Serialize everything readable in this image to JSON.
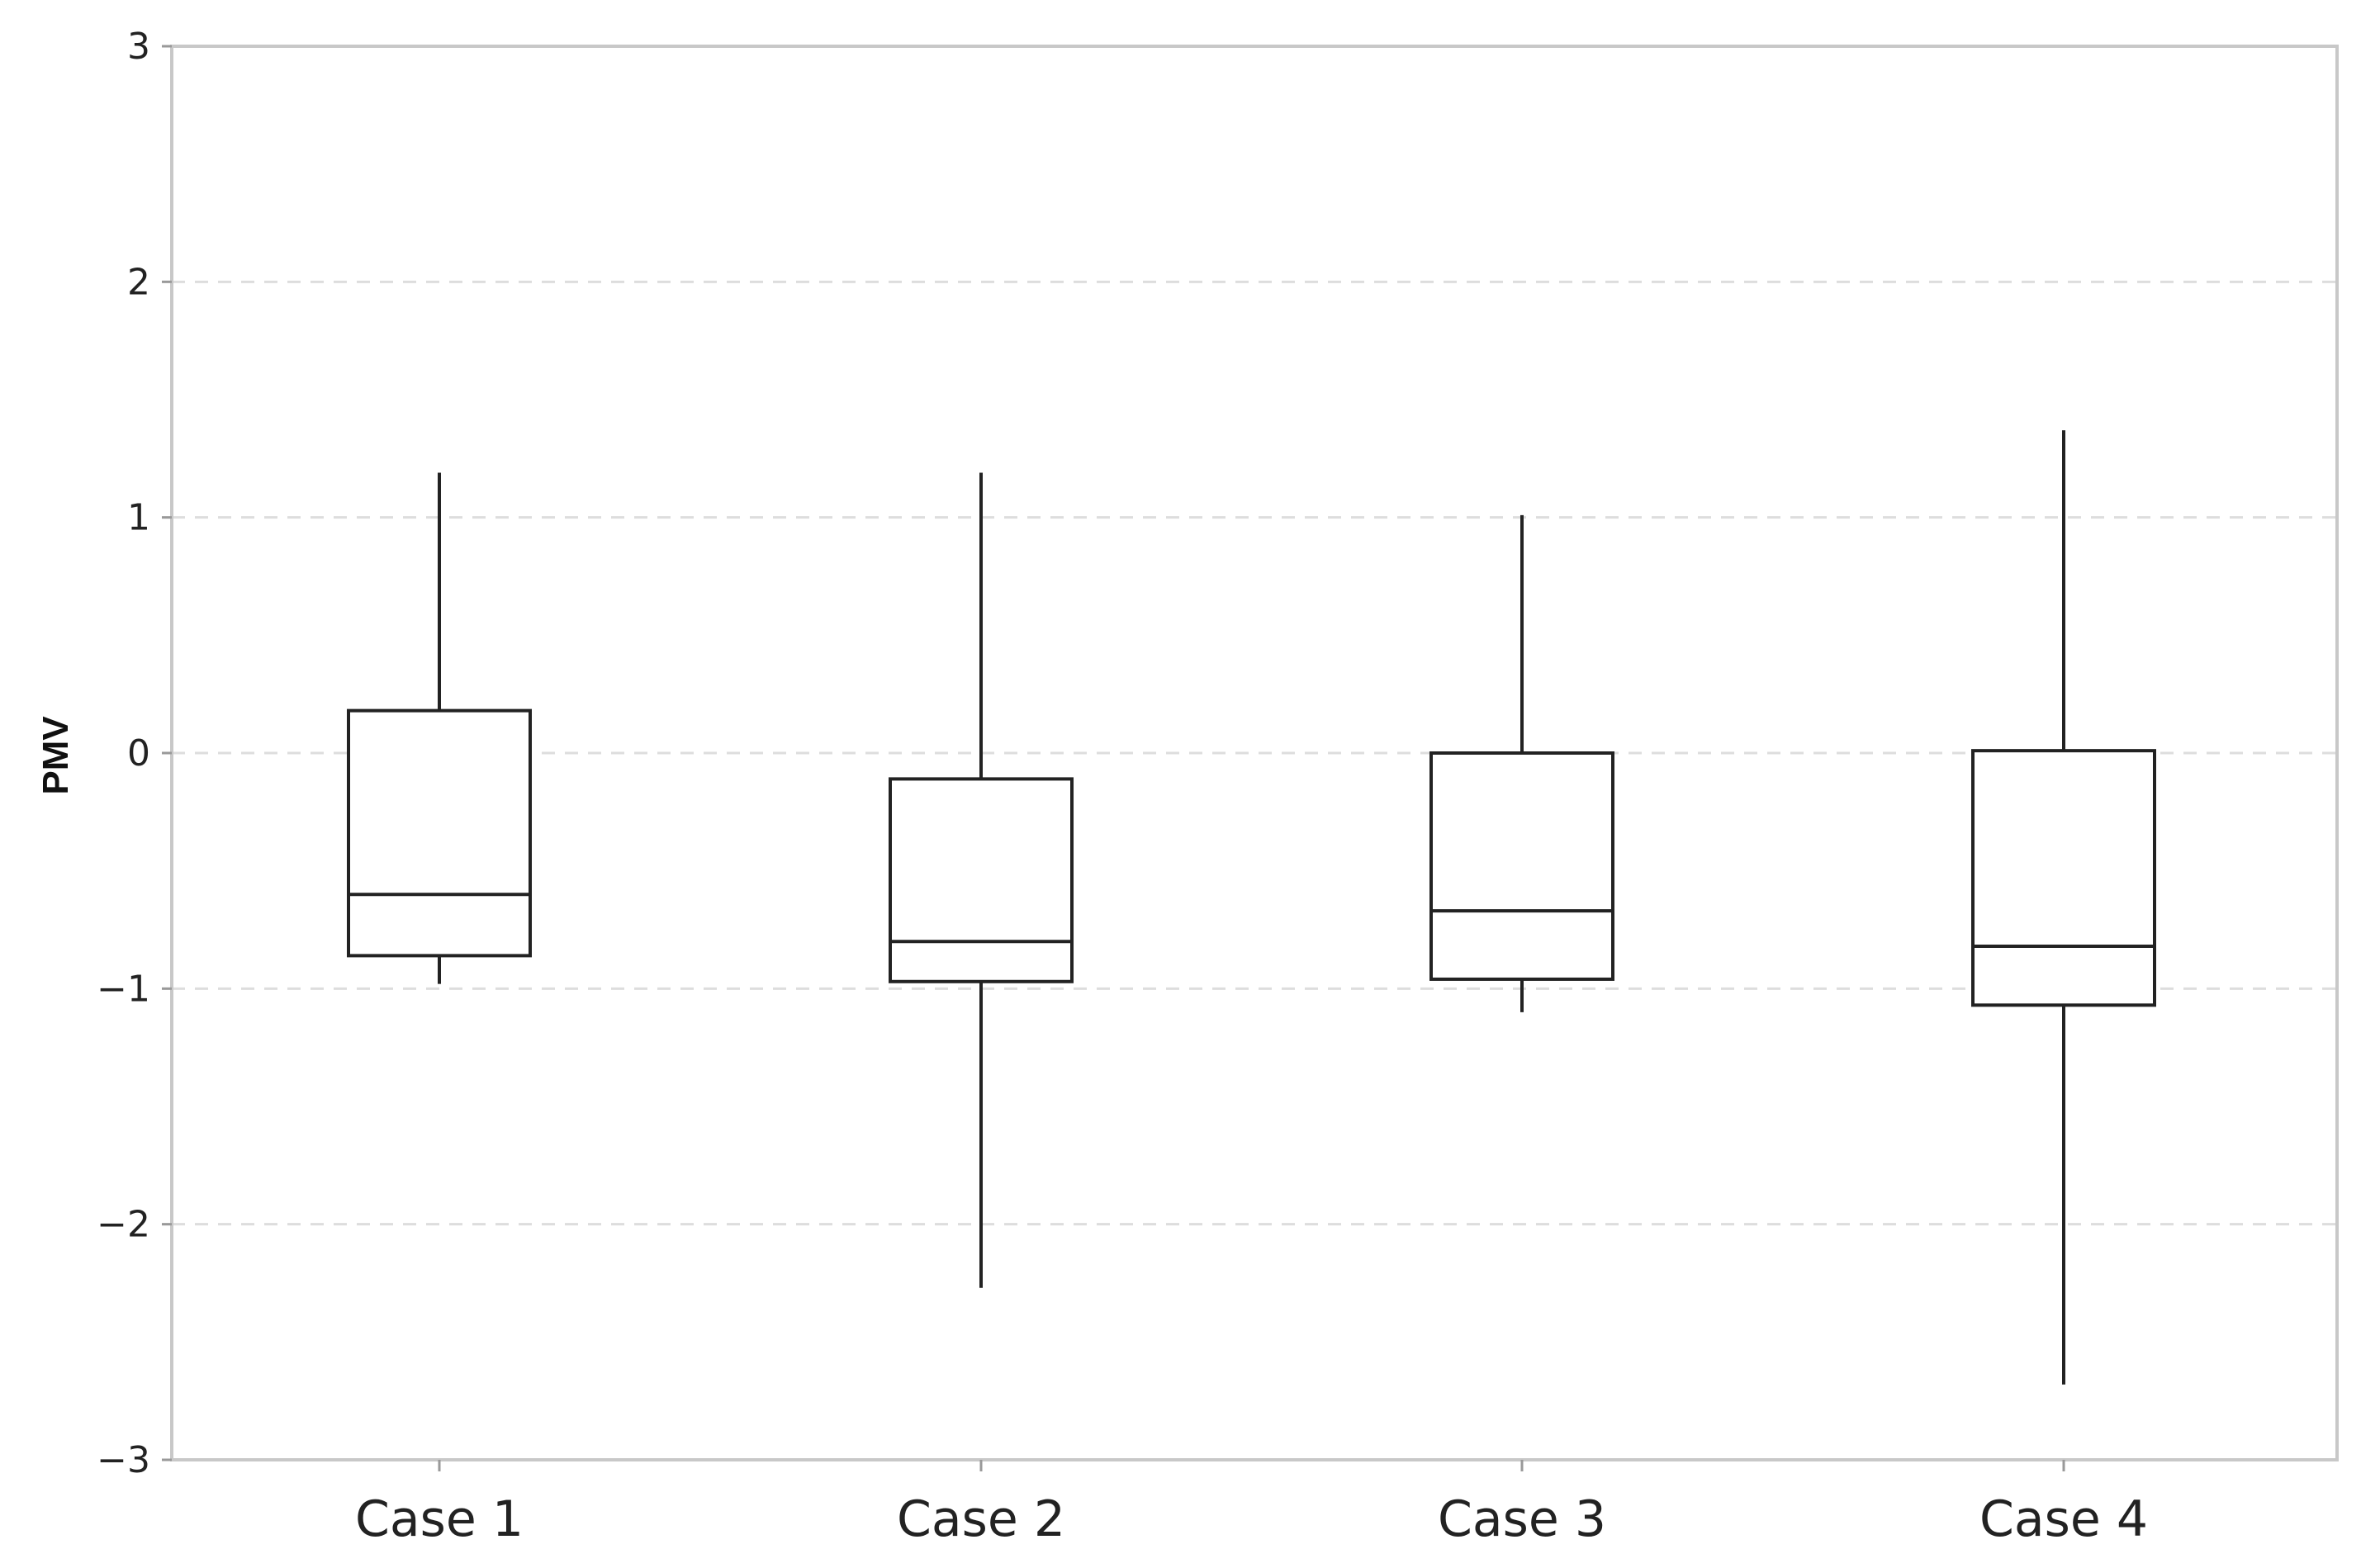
{
  "chart_data": {
    "type": "box",
    "title": "",
    "xlabel": "",
    "ylabel": "PMV",
    "ylim": [
      -3,
      3
    ],
    "yticks": [
      3,
      2,
      1,
      0,
      -1,
      -2,
      -3
    ],
    "ytick_labels": [
      "3",
      "2",
      "1",
      "0",
      "−1",
      "−2",
      "−3"
    ],
    "grid": "horizontal-dashed",
    "legend": "none",
    "categories": [
      "Case 1",
      "Case 2",
      "Case 3",
      "Case 4"
    ],
    "boxes": [
      {
        "category": "Case 1",
        "whisker_low": -0.98,
        "q1": -0.86,
        "median": -0.6,
        "q3": 0.18,
        "whisker_high": 1.19
      },
      {
        "category": "Case 2",
        "whisker_low": -2.27,
        "q1": -0.97,
        "median": -0.8,
        "q3": -0.11,
        "whisker_high": 1.19
      },
      {
        "category": "Case 3",
        "whisker_low": -1.1,
        "q1": -0.96,
        "median": -0.67,
        "q3": 0.0,
        "whisker_high": 1.01
      },
      {
        "category": "Case 4",
        "whisker_low": -2.68,
        "q1": -1.07,
        "median": -0.82,
        "q3": 0.01,
        "whisker_high": 1.37
      }
    ],
    "colors": {
      "box_stroke": "#222222",
      "box_fill": "#ffffff",
      "frame": "#c8c8c8",
      "grid": "#dddddd"
    }
  }
}
